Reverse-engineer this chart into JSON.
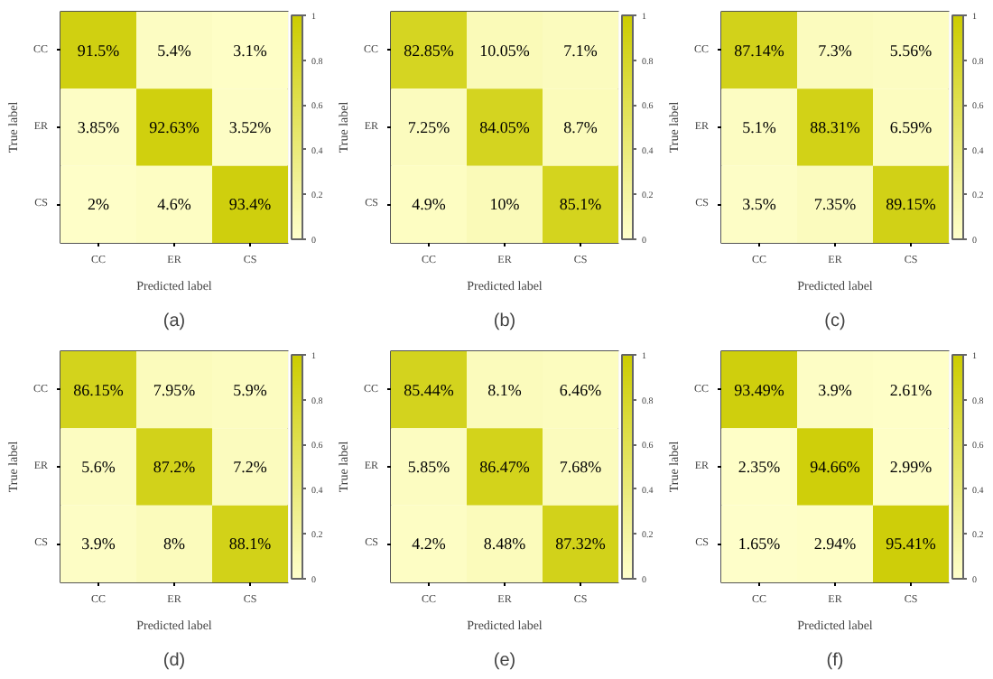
{
  "chart_data": [
    {
      "type": "heatmap",
      "annotations": [
        "(a)"
      ],
      "xlabel": "Predicted label",
      "ylabel": "True label",
      "categories": [
        "CC",
        "ER",
        "CS"
      ],
      "y_categories": [
        "CC",
        "ER",
        "CS"
      ],
      "clim": [
        0,
        1
      ],
      "cticks": [
        0,
        0.2,
        0.4,
        0.6,
        0.8,
        1
      ],
      "cells": [
        [
          0.915,
          0.054,
          0.031
        ],
        [
          0.0385,
          0.9263,
          0.0352
        ],
        [
          0.02,
          0.046,
          0.934
        ]
      ],
      "cell_labels": [
        [
          "91.5%",
          "5.4%",
          "3.1%"
        ],
        [
          "3.85%",
          "92.63%",
          "3.52%"
        ],
        [
          "2%",
          "4.6%",
          "93.4%"
        ]
      ]
    },
    {
      "type": "heatmap",
      "annotations": [
        "(b)"
      ],
      "xlabel": "Predicted label",
      "ylabel": "True label",
      "categories": [
        "CC",
        "ER",
        "CS"
      ],
      "y_categories": [
        "CC",
        "ER",
        "CS"
      ],
      "clim": [
        0,
        1
      ],
      "cticks": [
        0,
        0.2,
        0.4,
        0.6,
        0.8,
        1
      ],
      "cells": [
        [
          0.8285,
          0.1005,
          0.071
        ],
        [
          0.0725,
          0.8405,
          0.087
        ],
        [
          0.049,
          0.1,
          0.851
        ]
      ],
      "cell_labels": [
        [
          "82.85%",
          "10.05%",
          "7.1%"
        ],
        [
          "7.25%",
          "84.05%",
          "8.7%"
        ],
        [
          "4.9%",
          "10%",
          "85.1%"
        ]
      ]
    },
    {
      "type": "heatmap",
      "annotations": [
        "(c)"
      ],
      "xlabel": "Predicted label",
      "ylabel": "True label",
      "categories": [
        "CC",
        "ER",
        "CS"
      ],
      "y_categories": [
        "CC",
        "ER",
        "CS"
      ],
      "clim": [
        0,
        1
      ],
      "cticks": [
        0,
        0.2,
        0.4,
        0.6,
        0.8,
        1
      ],
      "cells": [
        [
          0.8714,
          0.073,
          0.0556
        ],
        [
          0.051,
          0.8831,
          0.0659
        ],
        [
          0.035,
          0.0735,
          0.8915
        ]
      ],
      "cell_labels": [
        [
          "87.14%",
          "7.3%",
          "5.56%"
        ],
        [
          "5.1%",
          "88.31%",
          "6.59%"
        ],
        [
          "3.5%",
          "7.35%",
          "89.15%"
        ]
      ]
    },
    {
      "type": "heatmap",
      "annotations": [
        "(d)"
      ],
      "xlabel": "Predicted label",
      "ylabel": "True label",
      "categories": [
        "CC",
        "ER",
        "CS"
      ],
      "y_categories": [
        "CC",
        "ER",
        "CS"
      ],
      "clim": [
        0,
        1
      ],
      "cticks": [
        0,
        0.2,
        0.4,
        0.6,
        0.8,
        1
      ],
      "cells": [
        [
          0.8615,
          0.0795,
          0.059
        ],
        [
          0.056,
          0.872,
          0.072
        ],
        [
          0.039,
          0.08,
          0.881
        ]
      ],
      "cell_labels": [
        [
          "86.15%",
          "7.95%",
          "5.9%"
        ],
        [
          "5.6%",
          "87.2%",
          "7.2%"
        ],
        [
          "3.9%",
          "8%",
          "88.1%"
        ]
      ]
    },
    {
      "type": "heatmap",
      "annotations": [
        "(e)"
      ],
      "xlabel": "Predicted label",
      "ylabel": "True label",
      "categories": [
        "CC",
        "ER",
        "CS"
      ],
      "y_categories": [
        "CC",
        "ER",
        "CS"
      ],
      "clim": [
        0,
        1
      ],
      "cticks": [
        0,
        0.2,
        0.4,
        0.6,
        0.8,
        1
      ],
      "cells": [
        [
          0.8544,
          0.081,
          0.0646
        ],
        [
          0.0585,
          0.8647,
          0.0768
        ],
        [
          0.042,
          0.0848,
          0.8732
        ]
      ],
      "cell_labels": [
        [
          "85.44%",
          "8.1%",
          "6.46%"
        ],
        [
          "5.85%",
          "86.47%",
          "7.68%"
        ],
        [
          "4.2%",
          "8.48%",
          "87.32%"
        ]
      ]
    },
    {
      "type": "heatmap",
      "annotations": [
        "(f)"
      ],
      "xlabel": "Predicted label",
      "ylabel": "True label",
      "categories": [
        "CC",
        "ER",
        "CS"
      ],
      "y_categories": [
        "CC",
        "ER",
        "CS"
      ],
      "clim": [
        0,
        1
      ],
      "cticks": [
        0,
        0.2,
        0.4,
        0.6,
        0.8,
        1
      ],
      "cells": [
        [
          0.9349,
          0.039,
          0.0261
        ],
        [
          0.0235,
          0.9466,
          0.0299
        ],
        [
          0.0165,
          0.0294,
          0.9541
        ]
      ],
      "cell_labels": [
        [
          "93.49%",
          "3.9%",
          "2.61%"
        ],
        [
          "2.35%",
          "94.66%",
          "2.99%"
        ],
        [
          "1.65%",
          "2.94%",
          "95.41%"
        ]
      ]
    }
  ]
}
